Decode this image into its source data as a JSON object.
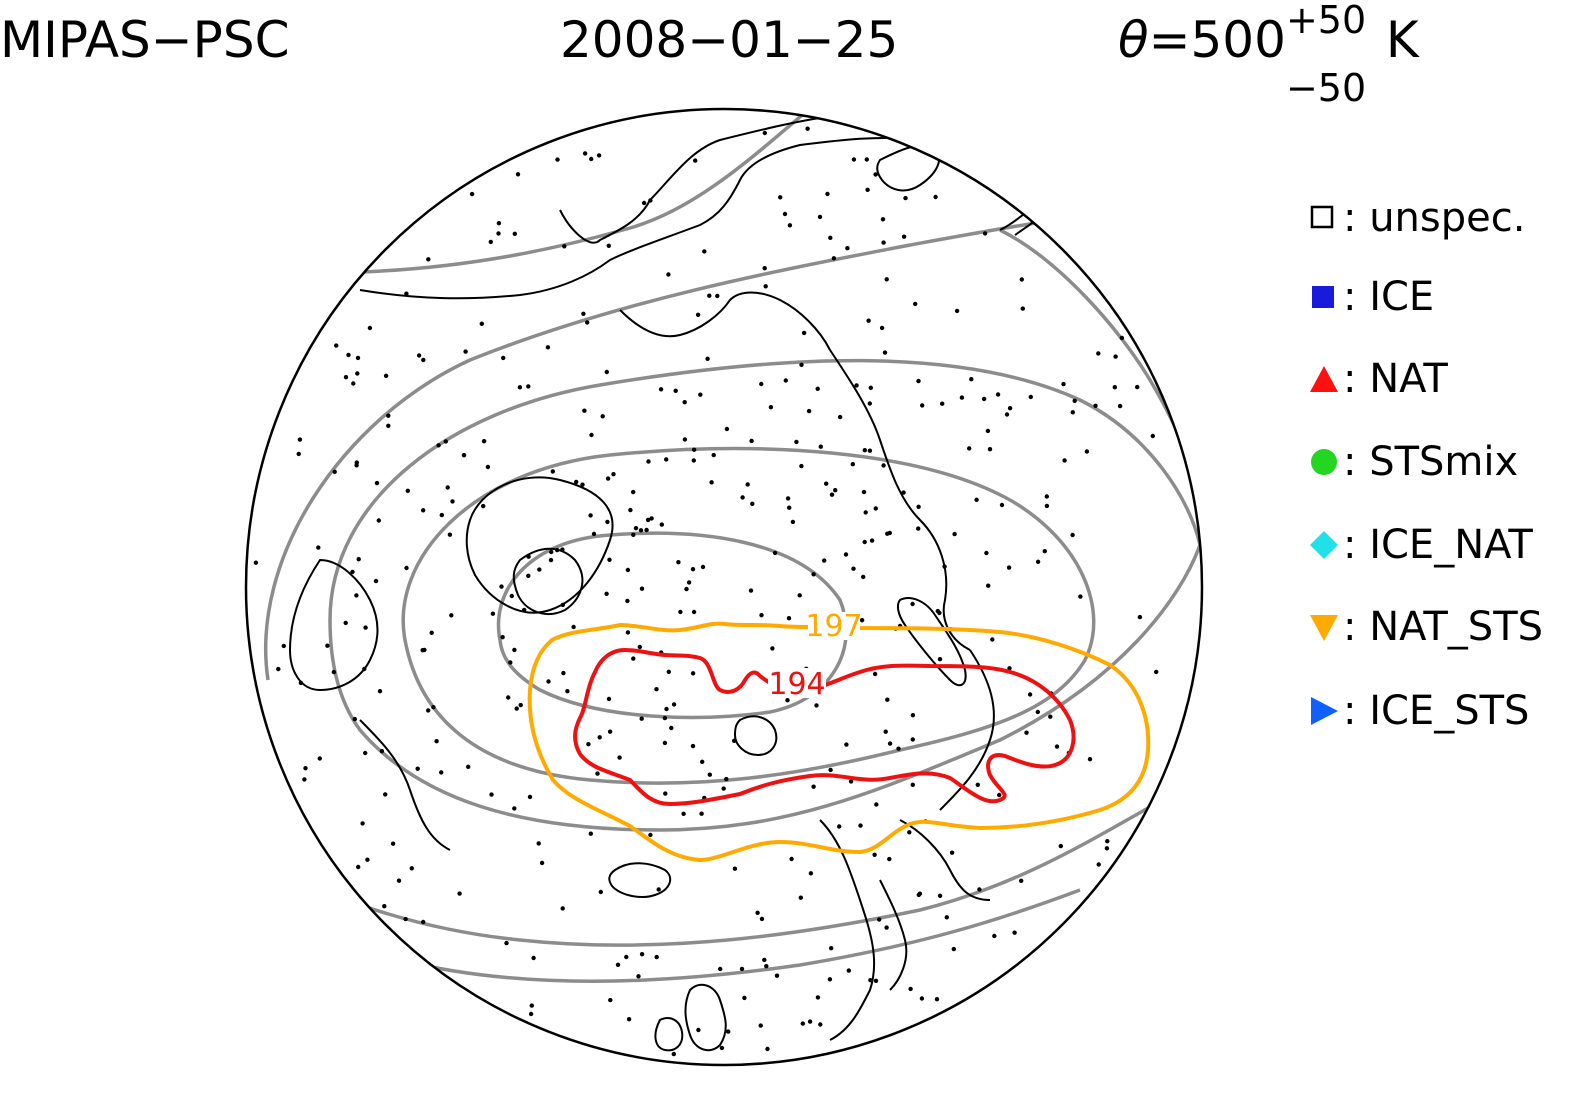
{
  "title": {
    "left": "MIPAS−PSC",
    "date": "2008−01−25",
    "theta_symbol": "θ",
    "theta_value": "=500",
    "theta_sup": "+50",
    "theta_sub": "−50",
    "theta_unit": "K"
  },
  "contour_labels": {
    "orange": "197",
    "red": "194"
  },
  "colors": {
    "ice": "#1a1adc",
    "nat": "#ff1010",
    "stsmix": "#22d622",
    "ice_nat": "#22e0e8",
    "nat_sts": "#ffaa00",
    "ice_sts": "#1060ff",
    "contour_grey": "#8c8c8c",
    "contour_orange": "#ffaa00",
    "contour_red": "#ee1111",
    "coast": "#000000"
  },
  "legend": [
    {
      "symbol": "open-square-icon",
      "label": ": unspec."
    },
    {
      "symbol": "filled-square-icon",
      "label": ": ICE"
    },
    {
      "symbol": "triangle-up-icon",
      "label": ": NAT"
    },
    {
      "symbol": "circle-icon",
      "label": ": STSmix"
    },
    {
      "symbol": "diamond-icon",
      "label": ": ICE_NAT"
    },
    {
      "symbol": "triangle-down-icon",
      "label": ": NAT_STS"
    },
    {
      "symbol": "triangle-right-icon",
      "label": ": ICE_STS"
    }
  ]
}
